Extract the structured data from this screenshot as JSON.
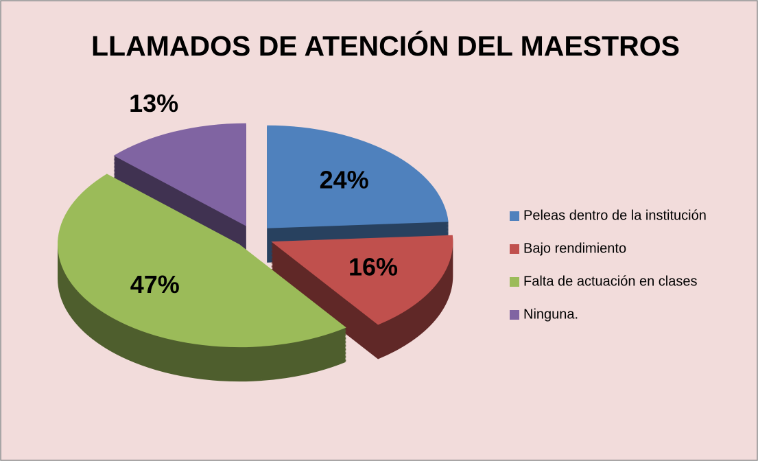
{
  "chart_data": {
    "type": "pie",
    "title": "LLAMADOS DE ATENCIÓN DEL MAESTROS",
    "categories": [
      "Peleas dentro de la institución",
      "Bajo rendimiento",
      "Falta de actuación en clases",
      "Ninguna."
    ],
    "values": [
      24,
      16,
      47,
      13
    ],
    "value_labels": [
      "24%",
      "16%",
      "47%",
      "13%"
    ],
    "colors": [
      "#4f81bd",
      "#c0504d",
      "#9bbb59",
      "#8064a2"
    ],
    "legend": "right"
  }
}
